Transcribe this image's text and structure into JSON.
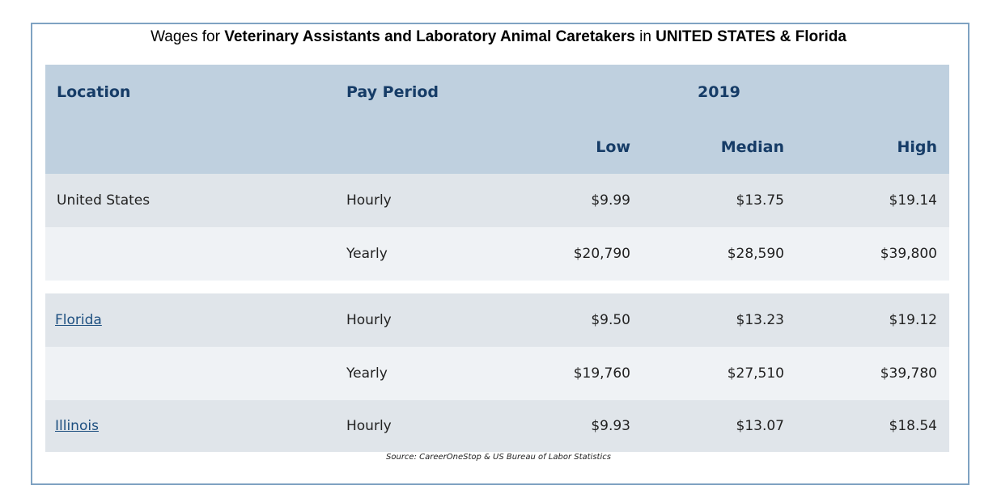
{
  "title": {
    "prefix": "Wages for ",
    "occupation": "Veterinary Assistants and Laboratory Animal Caretakers",
    "middle": " in ",
    "region": "UNITED STATES & Florida"
  },
  "table": {
    "headers": {
      "location": "Location",
      "pay_period": "Pay Period",
      "year": "2019",
      "low": "Low",
      "median": "Median",
      "high": "High"
    },
    "rows": [
      {
        "location": "United States",
        "location_link": false,
        "period": "Hourly",
        "low": "$9.99",
        "median": "$13.75",
        "high": "$19.14"
      },
      {
        "location": "",
        "location_link": false,
        "period": "Yearly",
        "low": "$20,790",
        "median": "$28,590",
        "high": "$39,800"
      },
      {
        "location": "Florida",
        "location_link": true,
        "period": "Hourly",
        "low": "$9.50",
        "median": "$13.23",
        "high": "$19.12"
      },
      {
        "location": "",
        "location_link": false,
        "period": "Yearly",
        "low": "$19,760",
        "median": "$27,510",
        "high": "$39,780"
      },
      {
        "location": "Illinois",
        "location_link": true,
        "period": "Hourly",
        "low": "$9.93",
        "median": "$13.07",
        "high": "$18.54"
      }
    ]
  },
  "source": "Source: CareerOneStop & US Bureau of Labor Statistics",
  "colors": {
    "header_bg": "#bfd0df",
    "header_text": "#163c67",
    "row_dark": "#e0e5ea",
    "row_light": "#eff2f5",
    "link": "#1d4f80",
    "frame_border": "#7fa2c2"
  }
}
